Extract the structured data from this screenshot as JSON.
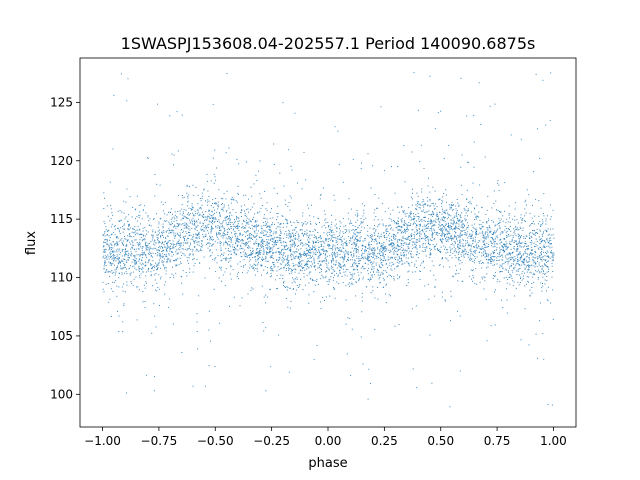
{
  "chart_data": {
    "type": "scatter",
    "title": "1SWASPJ153608.04-202557.1 Period 140090.6875s",
    "xlabel": "phase",
    "ylabel": "flux",
    "xlim": [
      -1.1,
      1.1
    ],
    "ylim": [
      97.2,
      128.8
    ],
    "xticks": [
      -1.0,
      -0.75,
      -0.5,
      -0.25,
      0.0,
      0.25,
      0.5,
      0.75,
      1.0
    ],
    "xtick_labels": [
      "−1.00",
      "−0.75",
      "−0.50",
      "−0.25",
      "0.00",
      "0.25",
      "0.50",
      "0.75",
      "1.00"
    ],
    "yticks": [
      100,
      105,
      110,
      115,
      120,
      125
    ],
    "ytick_labels": [
      "100",
      "105",
      "110",
      "115",
      "120",
      "125"
    ],
    "grid": false,
    "legend": "none",
    "marker_color": "#1f77b4",
    "series": [
      {
        "phase_range": [
          -1.0,
          1.0
        ],
        "points": [
          [
            -1.0,
            112.6
          ],
          [
            -0.95,
            112.3
          ],
          [
            -0.9,
            112.4
          ],
          [
            -0.85,
            112.5
          ],
          [
            -0.8,
            112.1
          ],
          [
            -0.75,
            112.4
          ],
          [
            -0.7,
            113.0
          ],
          [
            -0.65,
            113.6
          ],
          [
            -0.6,
            114.0
          ],
          [
            -0.55,
            114.3
          ],
          [
            -0.5,
            114.2
          ],
          [
            -0.45,
            113.9
          ],
          [
            -0.4,
            113.6
          ],
          [
            -0.35,
            113.4
          ],
          [
            -0.3,
            113.1
          ],
          [
            -0.25,
            112.8
          ],
          [
            -0.2,
            112.5
          ],
          [
            -0.15,
            112.3
          ],
          [
            -0.1,
            112.2
          ],
          [
            -0.05,
            112.3
          ],
          [
            0.0,
            112.6
          ],
          [
            0.05,
            112.3
          ],
          [
            0.1,
            112.4
          ],
          [
            0.15,
            112.5
          ],
          [
            0.2,
            112.1
          ],
          [
            0.25,
            112.4
          ],
          [
            0.3,
            113.0
          ],
          [
            0.35,
            113.6
          ],
          [
            0.4,
            114.0
          ],
          [
            0.45,
            114.3
          ],
          [
            0.5,
            114.2
          ],
          [
            0.55,
            113.9
          ],
          [
            0.6,
            113.6
          ],
          [
            0.65,
            113.4
          ],
          [
            0.7,
            113.1
          ],
          [
            0.75,
            112.8
          ],
          [
            0.8,
            112.5
          ],
          [
            0.85,
            112.3
          ],
          [
            0.9,
            112.2
          ],
          [
            0.95,
            112.3
          ],
          [
            1.0,
            112.6
          ]
        ]
      }
    ]
  }
}
